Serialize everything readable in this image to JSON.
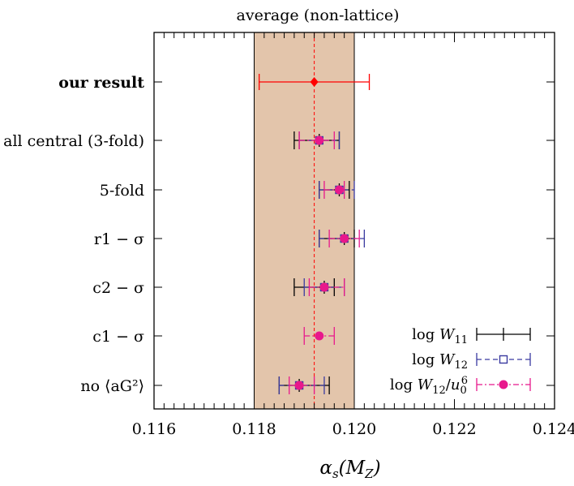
{
  "chart_data": {
    "type": "scatter",
    "title": "average (non-lattice)",
    "xlabel": "αs(MZ)",
    "xlim": [
      0.116,
      0.124
    ],
    "x_ticks": [
      "0.116",
      "0.118",
      "0.120",
      "0.122",
      "0.124"
    ],
    "average_band": {
      "low": 0.118,
      "high": 0.12,
      "center": 0.1192,
      "color": "#e3c5ab"
    },
    "our_result": {
      "label": "our result",
      "value": 0.1192,
      "low": 0.1181,
      "high": 0.1203,
      "color": "#ff0000"
    },
    "categories": [
      "all central (3-fold)",
      "5-fold",
      "r1 − σ",
      "c2 − σ",
      "c1 − σ",
      "no ⟨aG²⟩"
    ],
    "series": [
      {
        "name": "log W11",
        "color": "#000000",
        "marker": "plus",
        "style": "solid",
        "points": [
          {
            "x": 0.1193,
            "low": 0.1188,
            "high": 0.1197
          },
          {
            "x": 0.1197,
            "low": 0.1193,
            "high": 0.1199
          },
          {
            "x": 0.1198,
            "low": 0.1193,
            "high": 0.12
          },
          {
            "x": 0.1194,
            "low": 0.1188,
            "high": 0.1196
          },
          null,
          {
            "x": 0.1189,
            "low": 0.1185,
            "high": 0.1195
          }
        ]
      },
      {
        "name": "log W12",
        "color": "#3a3aa0",
        "marker": "open-square",
        "style": "dashed",
        "points": [
          {
            "x": 0.1193,
            "low": 0.1189,
            "high": 0.1197
          },
          {
            "x": 0.1197,
            "low": 0.1193,
            "high": 0.12
          },
          {
            "x": 0.1198,
            "low": 0.1193,
            "high": 0.1202
          },
          {
            "x": 0.1194,
            "low": 0.119,
            "high": 0.1198
          },
          null,
          {
            "x": 0.1189,
            "low": 0.1185,
            "high": 0.1194
          }
        ]
      },
      {
        "name": "log W12/u0^6",
        "color": "#e8188c",
        "marker": "filled-circle",
        "style": "dashdot",
        "points": [
          {
            "x": 0.1193,
            "low": 0.1189,
            "high": 0.1196
          },
          {
            "x": 0.1197,
            "low": 0.1194,
            "high": 0.1198
          },
          {
            "x": 0.1198,
            "low": 0.1195,
            "high": 0.1201
          },
          {
            "x": 0.1194,
            "low": 0.1191,
            "high": 0.1198
          },
          {
            "x": 0.1193,
            "low": 0.119,
            "high": 0.1196
          },
          {
            "x": 0.1189,
            "low": 0.1187,
            "high": 0.1192
          }
        ]
      }
    ],
    "legend_position": "bottom-right"
  }
}
